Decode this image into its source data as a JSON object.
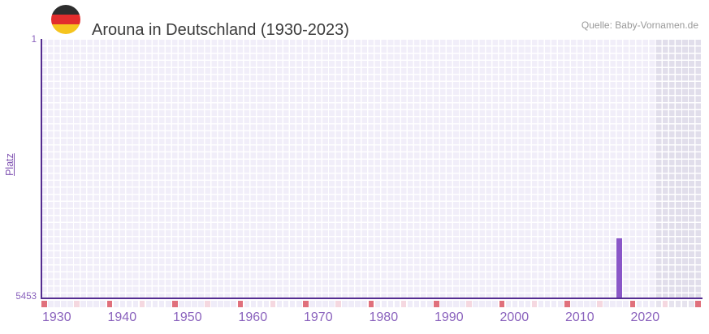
{
  "header": {
    "title": "Arouna in Deutschland (1930-2023)",
    "source": "Quelle: Baby-Vornamen.de",
    "flag": "germany-flag"
  },
  "chart_data": {
    "type": "bar",
    "title": "Arouna in Deutschland (1930-2023)",
    "xlabel": "",
    "ylabel": "Platz",
    "y_axis": {
      "top_tick_label": "1",
      "bottom_tick_label": "5453",
      "min": 1,
      "max": 5453,
      "inverted": true
    },
    "x_axis": {
      "data_start_year": 1930,
      "data_end_year": 2023,
      "display_end_year": 2030,
      "tick_years": [
        1930,
        1940,
        1950,
        1960,
        1970,
        1980,
        1990,
        2000,
        2010,
        2020
      ]
    },
    "series": [
      {
        "name": "Platz",
        "points": [
          {
            "year": 2018,
            "rank": 4188
          }
        ]
      }
    ],
    "future_shaded_from_year": 2024,
    "strip_marker_years_red": [
      1930,
      1940,
      1950,
      1960,
      1970,
      1980,
      1990,
      2000,
      2010,
      2020,
      2030
    ],
    "strip_marker_years_pink": [
      1935,
      1945,
      1955,
      1965,
      1975,
      1985,
      1995,
      2005,
      2015,
      2025
    ],
    "legend": null,
    "grid": true,
    "colors": {
      "bar": "#8a57c8",
      "axis_line": "#552d91",
      "grid_cell": "#f1eef9",
      "grid_cell_future": "#e1deeb",
      "grid_line": "#ffffff",
      "tick_text": "#8a62bd",
      "ylabel_text": "#7d4fb0",
      "title_text": "#3b3b3b",
      "source_text": "#999999",
      "strip_red": "#e0707c",
      "strip_pink": "#f5d8e0",
      "strip_default": "#efecf8",
      "strip_default_future": "#e6e3ee",
      "flag_black": "#2d2d2d",
      "flag_red": "#e22d2d",
      "flag_gold": "#f5c41e"
    }
  }
}
